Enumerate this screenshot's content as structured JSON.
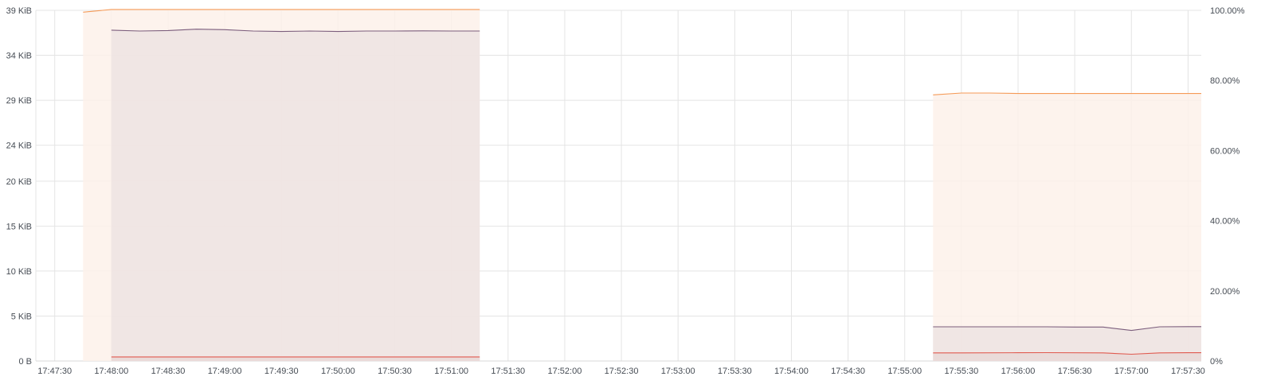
{
  "chart_data": {
    "type": "area",
    "time_axis": {
      "range": [
        "17:47:20",
        "17:57:37"
      ],
      "ticks": [
        "17:47:30",
        "17:48:00",
        "17:48:30",
        "17:49:00",
        "17:49:30",
        "17:50:00",
        "17:50:30",
        "17:51:00",
        "17:51:30",
        "17:52:00",
        "17:52:30",
        "17:53:00",
        "17:53:30",
        "17:54:00",
        "17:54:30",
        "17:55:00",
        "17:55:30",
        "17:56:00",
        "17:56:30",
        "17:57:00",
        "17:57:30"
      ]
    },
    "y_axis_left": {
      "unit": "KiB",
      "ylim": [
        0,
        39
      ],
      "ticks": [
        {
          "value": 0,
          "label": "0 B"
        },
        {
          "value": 5,
          "label": "5 KiB"
        },
        {
          "value": 10,
          "label": "10 KiB"
        },
        {
          "value": 15,
          "label": "15 KiB"
        },
        {
          "value": 20,
          "label": "20 KiB"
        },
        {
          "value": 24,
          "label": "24 KiB"
        },
        {
          "value": 29,
          "label": "29 KiB"
        },
        {
          "value": 34,
          "label": "34 KiB"
        },
        {
          "value": 39,
          "label": "39 KiB"
        }
      ]
    },
    "y_axis_right": {
      "unit": "%",
      "ylim": [
        0,
        100
      ],
      "ticks": [
        {
          "value": 0,
          "label": "0%"
        },
        {
          "value": 20,
          "label": "20.00%"
        },
        {
          "value": 40,
          "label": "40.00%"
        },
        {
          "value": 60,
          "label": "60.00%"
        },
        {
          "value": 80,
          "label": "80.00%"
        },
        {
          "value": 100,
          "label": "100.00%"
        }
      ]
    },
    "grid": true,
    "legend": "none",
    "series": [
      {
        "color": "#f59a57",
        "fill": "#fdf1ea",
        "segments": [
          {
            "points": [
              [
                "17:47:45",
                38.8
              ],
              [
                "17:48:00",
                39.1
              ],
              [
                "17:48:15",
                39.1
              ],
              [
                "17:48:30",
                39.1
              ],
              [
                "17:48:45",
                39.1
              ],
              [
                "17:49:00",
                39.1
              ],
              [
                "17:49:15",
                39.1
              ],
              [
                "17:49:30",
                39.1
              ],
              [
                "17:49:45",
                39.1
              ],
              [
                "17:50:00",
                39.1
              ],
              [
                "17:50:15",
                39.1
              ],
              [
                "17:50:30",
                39.1
              ],
              [
                "17:50:45",
                39.1
              ],
              [
                "17:51:00",
                39.1
              ],
              [
                "17:51:15",
                39.1
              ]
            ]
          },
          {
            "points": [
              [
                "17:55:15",
                29.6
              ],
              [
                "17:55:30",
                29.8
              ],
              [
                "17:55:45",
                29.8
              ],
              [
                "17:56:00",
                29.75
              ],
              [
                "17:56:15",
                29.75
              ],
              [
                "17:56:30",
                29.75
              ],
              [
                "17:56:45",
                29.75
              ],
              [
                "17:57:00",
                29.75
              ],
              [
                "17:57:15",
                29.75
              ],
              [
                "17:57:30",
                29.75
              ],
              [
                "17:57:37",
                29.75
              ]
            ]
          }
        ]
      },
      {
        "color": "#7b5d7c",
        "fill": "#ede3e2",
        "segments": [
          {
            "points": [
              [
                "17:48:00",
                36.8
              ],
              [
                "17:48:15",
                36.7
              ],
              [
                "17:48:30",
                36.75
              ],
              [
                "17:48:45",
                36.9
              ],
              [
                "17:49:00",
                36.85
              ],
              [
                "17:49:15",
                36.7
              ],
              [
                "17:49:30",
                36.65
              ],
              [
                "17:49:45",
                36.7
              ],
              [
                "17:50:00",
                36.65
              ],
              [
                "17:50:15",
                36.7
              ],
              [
                "17:50:30",
                36.7
              ],
              [
                "17:50:45",
                36.72
              ],
              [
                "17:51:00",
                36.7
              ],
              [
                "17:51:15",
                36.7
              ]
            ]
          },
          {
            "points": [
              [
                "17:55:15",
                3.8
              ],
              [
                "17:55:30",
                3.8
              ],
              [
                "17:55:45",
                3.8
              ],
              [
                "17:56:00",
                3.8
              ],
              [
                "17:56:15",
                3.8
              ],
              [
                "17:56:30",
                3.78
              ],
              [
                "17:56:45",
                3.78
              ],
              [
                "17:57:00",
                3.4
              ],
              [
                "17:57:15",
                3.8
              ],
              [
                "17:57:30",
                3.82
              ],
              [
                "17:57:37",
                3.82
              ]
            ]
          }
        ]
      },
      {
        "color": "#e05a4f",
        "fill": "#e9d8d7",
        "segments": [
          {
            "points": [
              [
                "17:48:00",
                0.45
              ],
              [
                "17:48:30",
                0.45
              ],
              [
                "17:49:00",
                0.45
              ],
              [
                "17:49:30",
                0.45
              ],
              [
                "17:50:00",
                0.45
              ],
              [
                "17:50:30",
                0.45
              ],
              [
                "17:51:00",
                0.45
              ],
              [
                "17:51:15",
                0.45
              ]
            ]
          },
          {
            "points": [
              [
                "17:55:15",
                0.9
              ],
              [
                "17:55:30",
                0.9
              ],
              [
                "17:56:00",
                0.92
              ],
              [
                "17:56:15",
                0.93
              ],
              [
                "17:56:45",
                0.9
              ],
              [
                "17:57:00",
                0.75
              ],
              [
                "17:57:15",
                0.9
              ],
              [
                "17:57:30",
                0.92
              ],
              [
                "17:57:37",
                0.92
              ]
            ]
          }
        ]
      }
    ]
  }
}
